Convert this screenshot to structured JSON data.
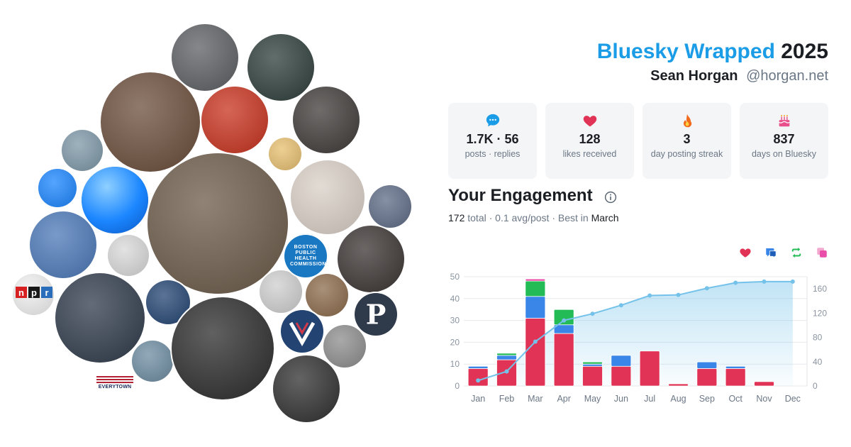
{
  "colors": {
    "brand": "#1a9ce6",
    "posts": "#e03355",
    "replies": "#3a86e8",
    "reposts": "#22bb55",
    "quotes": "#e94fa8",
    "line": "#74c2ea"
  },
  "avatars": [
    {
      "name": "avatar",
      "bg": "#5c5f63",
      "ini": ""
    },
    {
      "name": "avatar",
      "bg": "#2d3d3a",
      "ini": ""
    },
    {
      "name": "avatar",
      "bg": "#6a4d3a",
      "ini": ""
    },
    {
      "name": "avatar",
      "bg": "#c8321e",
      "ini": ""
    },
    {
      "name": "avatar",
      "bg": "#3f3a38",
      "ini": ""
    },
    {
      "name": "avatar",
      "bg": "#7e98a8",
      "ini": ""
    },
    {
      "name": "avatar",
      "bg": "#e8c070",
      "ini": ""
    },
    {
      "name": "avatar",
      "bg": "#6b5a48",
      "ini": ""
    },
    {
      "name": "avatar",
      "bg": "#d9cfc6",
      "ini": ""
    },
    {
      "name": "avatar",
      "bg": "#1b86ff",
      "ini": ""
    },
    {
      "name": "avatar",
      "bg": "#272625",
      "ini": ""
    },
    {
      "name": "avatar",
      "bg": "#5e6b86",
      "ini": ""
    },
    {
      "name": "avatar",
      "bg": "#4b78b8",
      "ini": ""
    },
    {
      "name": "avatar",
      "bg": "#d9d9d9",
      "ini": ""
    },
    {
      "name": "avatar",
      "bg": "#1a78c2",
      "ini": ""
    },
    {
      "name": "avatar",
      "bg": "#3a3432",
      "ini": ""
    },
    {
      "name": "avatar",
      "bg": "#8b6a4a",
      "ini": ""
    },
    {
      "name": "avatar",
      "bg": "#cfcfcf",
      "ini": ""
    },
    {
      "name": "avatar",
      "bg": "#f1f1f1",
      "ini": ""
    },
    {
      "name": "avatar",
      "bg": "#234472",
      "ini": ""
    },
    {
      "name": "avatar",
      "bg": "#2f3a4a",
      "ini": ""
    },
    {
      "name": "avatar",
      "bg": "#b69a7a",
      "ini": ""
    },
    {
      "name": "avatar",
      "bg": "#c9cbcb",
      "ini": ""
    },
    {
      "name": "avatar",
      "bg": "#8d8d8d",
      "ini": ""
    },
    {
      "name": "avatar",
      "bg": "#6d8ca1",
      "ini": ""
    },
    {
      "name": "avatar",
      "bg": "#2b2b2b",
      "ini": ""
    },
    {
      "name": "avatar",
      "bg": "#2f2f2f",
      "ini": ""
    },
    {
      "name": "avatar",
      "bg": "#c5a37a",
      "ini": ""
    }
  ],
  "logos": {
    "npr": [
      "n",
      "p",
      "r"
    ],
    "boston": "BOSTON PUBLIC HEALTH COMMISSION",
    "p_logo": "P",
    "everytown": "EVERYTOWN"
  },
  "header": {
    "brand": "Bluesky Wrapped",
    "year": "2025",
    "name": "Sean Horgan",
    "handle": "@horgan.net"
  },
  "stats": [
    {
      "icon": "chat-bubble-icon",
      "value": "1.7K · 56",
      "label": "posts · replies"
    },
    {
      "icon": "heart-icon",
      "value": "128",
      "label": "likes received"
    },
    {
      "icon": "flame-icon",
      "value": "3",
      "label": "day posting streak"
    },
    {
      "icon": "cake-icon",
      "value": "837",
      "label": "days on Bluesky"
    }
  ],
  "engagement": {
    "title": "Your Engagement",
    "total": "172",
    "total_word": "total",
    "avg": "0.1 avg/post",
    "best_prefix": "Best in",
    "best_month": "March",
    "sep": "·"
  },
  "legend": [
    "heart-icon",
    "reply-icon",
    "repost-icon",
    "quote-icon"
  ],
  "chart_data": {
    "type": "bar",
    "categories": [
      "Jan",
      "Feb",
      "Mar",
      "Apr",
      "May",
      "Jun",
      "Jul",
      "Aug",
      "Sep",
      "Oct",
      "Nov",
      "Dec"
    ],
    "series": [
      {
        "values": [
          8,
          12,
          31,
          24,
          9,
          9,
          16,
          1,
          8,
          8,
          2,
          0
        ]
      },
      {
        "values": [
          1,
          2,
          10,
          4,
          1,
          5,
          0,
          0,
          3,
          1,
          0,
          0
        ]
      },
      {
        "values": [
          0,
          1,
          7,
          7,
          1,
          0,
          0,
          0,
          0,
          0,
          0,
          0
        ]
      },
      {
        "values": [
          0,
          0,
          1,
          0,
          0,
          0,
          0,
          0,
          0,
          0,
          0,
          0
        ]
      }
    ],
    "line": {
      "values": [
        9,
        24,
        73,
        108,
        119,
        133,
        149,
        150,
        161,
        170,
        172,
        172
      ]
    },
    "ylim": [
      0,
      50
    ],
    "yticks": [
      0,
      10,
      20,
      30,
      40,
      50
    ],
    "y2lim": [
      0,
      180
    ],
    "y2ticks": [
      0,
      40,
      80,
      120,
      160
    ],
    "grid": true,
    "legend_position": "top-right"
  }
}
